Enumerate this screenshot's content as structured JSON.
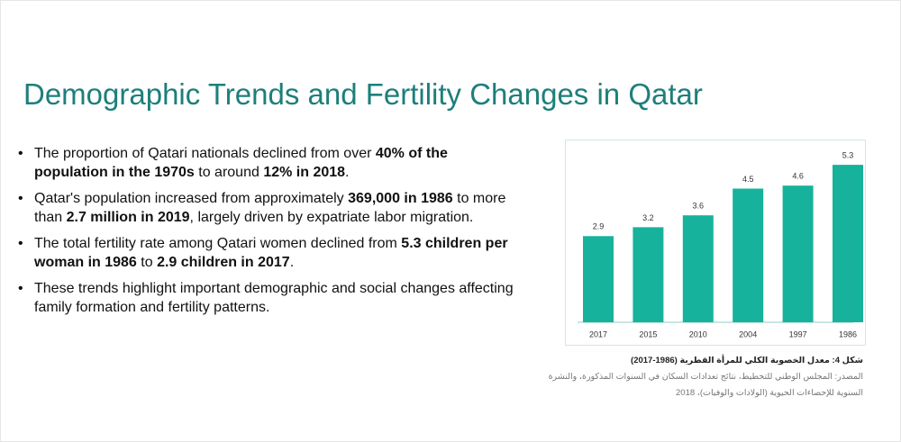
{
  "title": "Demographic Trends and Fertility Changes in Qatar",
  "bullets": [
    [
      {
        "text": "The proportion of Qatari nationals declined from over ",
        "bold": false
      },
      {
        "text": "40% of the population in the 1970s",
        "bold": true
      },
      {
        "text": " to around ",
        "bold": false
      },
      {
        "text": "12% in 2018",
        "bold": true
      },
      {
        "text": ".",
        "bold": false
      }
    ],
    [
      {
        "text": "Qatar's population increased from approximately ",
        "bold": false
      },
      {
        "text": "369,000 in 1986",
        "bold": true
      },
      {
        "text": " to more than ",
        "bold": false
      },
      {
        "text": "2.7 million in 2019",
        "bold": true
      },
      {
        "text": ", largely driven by expatriate labor migration.",
        "bold": false
      }
    ],
    [
      {
        "text": "The total fertility rate among Qatari women declined from ",
        "bold": false
      },
      {
        "text": "5.3 children per woman in 1986",
        "bold": true
      },
      {
        "text": " to ",
        "bold": false
      },
      {
        "text": "2.9 children in 2017",
        "bold": true
      },
      {
        "text": ".",
        "bold": false
      }
    ],
    [
      {
        "text": "These trends highlight important demographic and social changes affecting family formation and fertility patterns.",
        "bold": false
      }
    ]
  ],
  "chart_data": {
    "type": "bar",
    "title": "شكل 4: معدل الخصوبة الكلي للمرأة القطرية (1986-2017)",
    "source": "المصدر: المجلس الوطني للتخطيط، نتائج تعدادات السكان في السنوات المذكورة، والنشرة السنوية للإحصاءات الحيوية (الولادات والوفيات)، 2018",
    "categories": [
      "2017",
      "2015",
      "2010",
      "2004",
      "1997",
      "1986"
    ],
    "values": [
      2.9,
      3.2,
      3.6,
      4.5,
      4.6,
      5.3
    ],
    "color": "#17b29b"
  }
}
